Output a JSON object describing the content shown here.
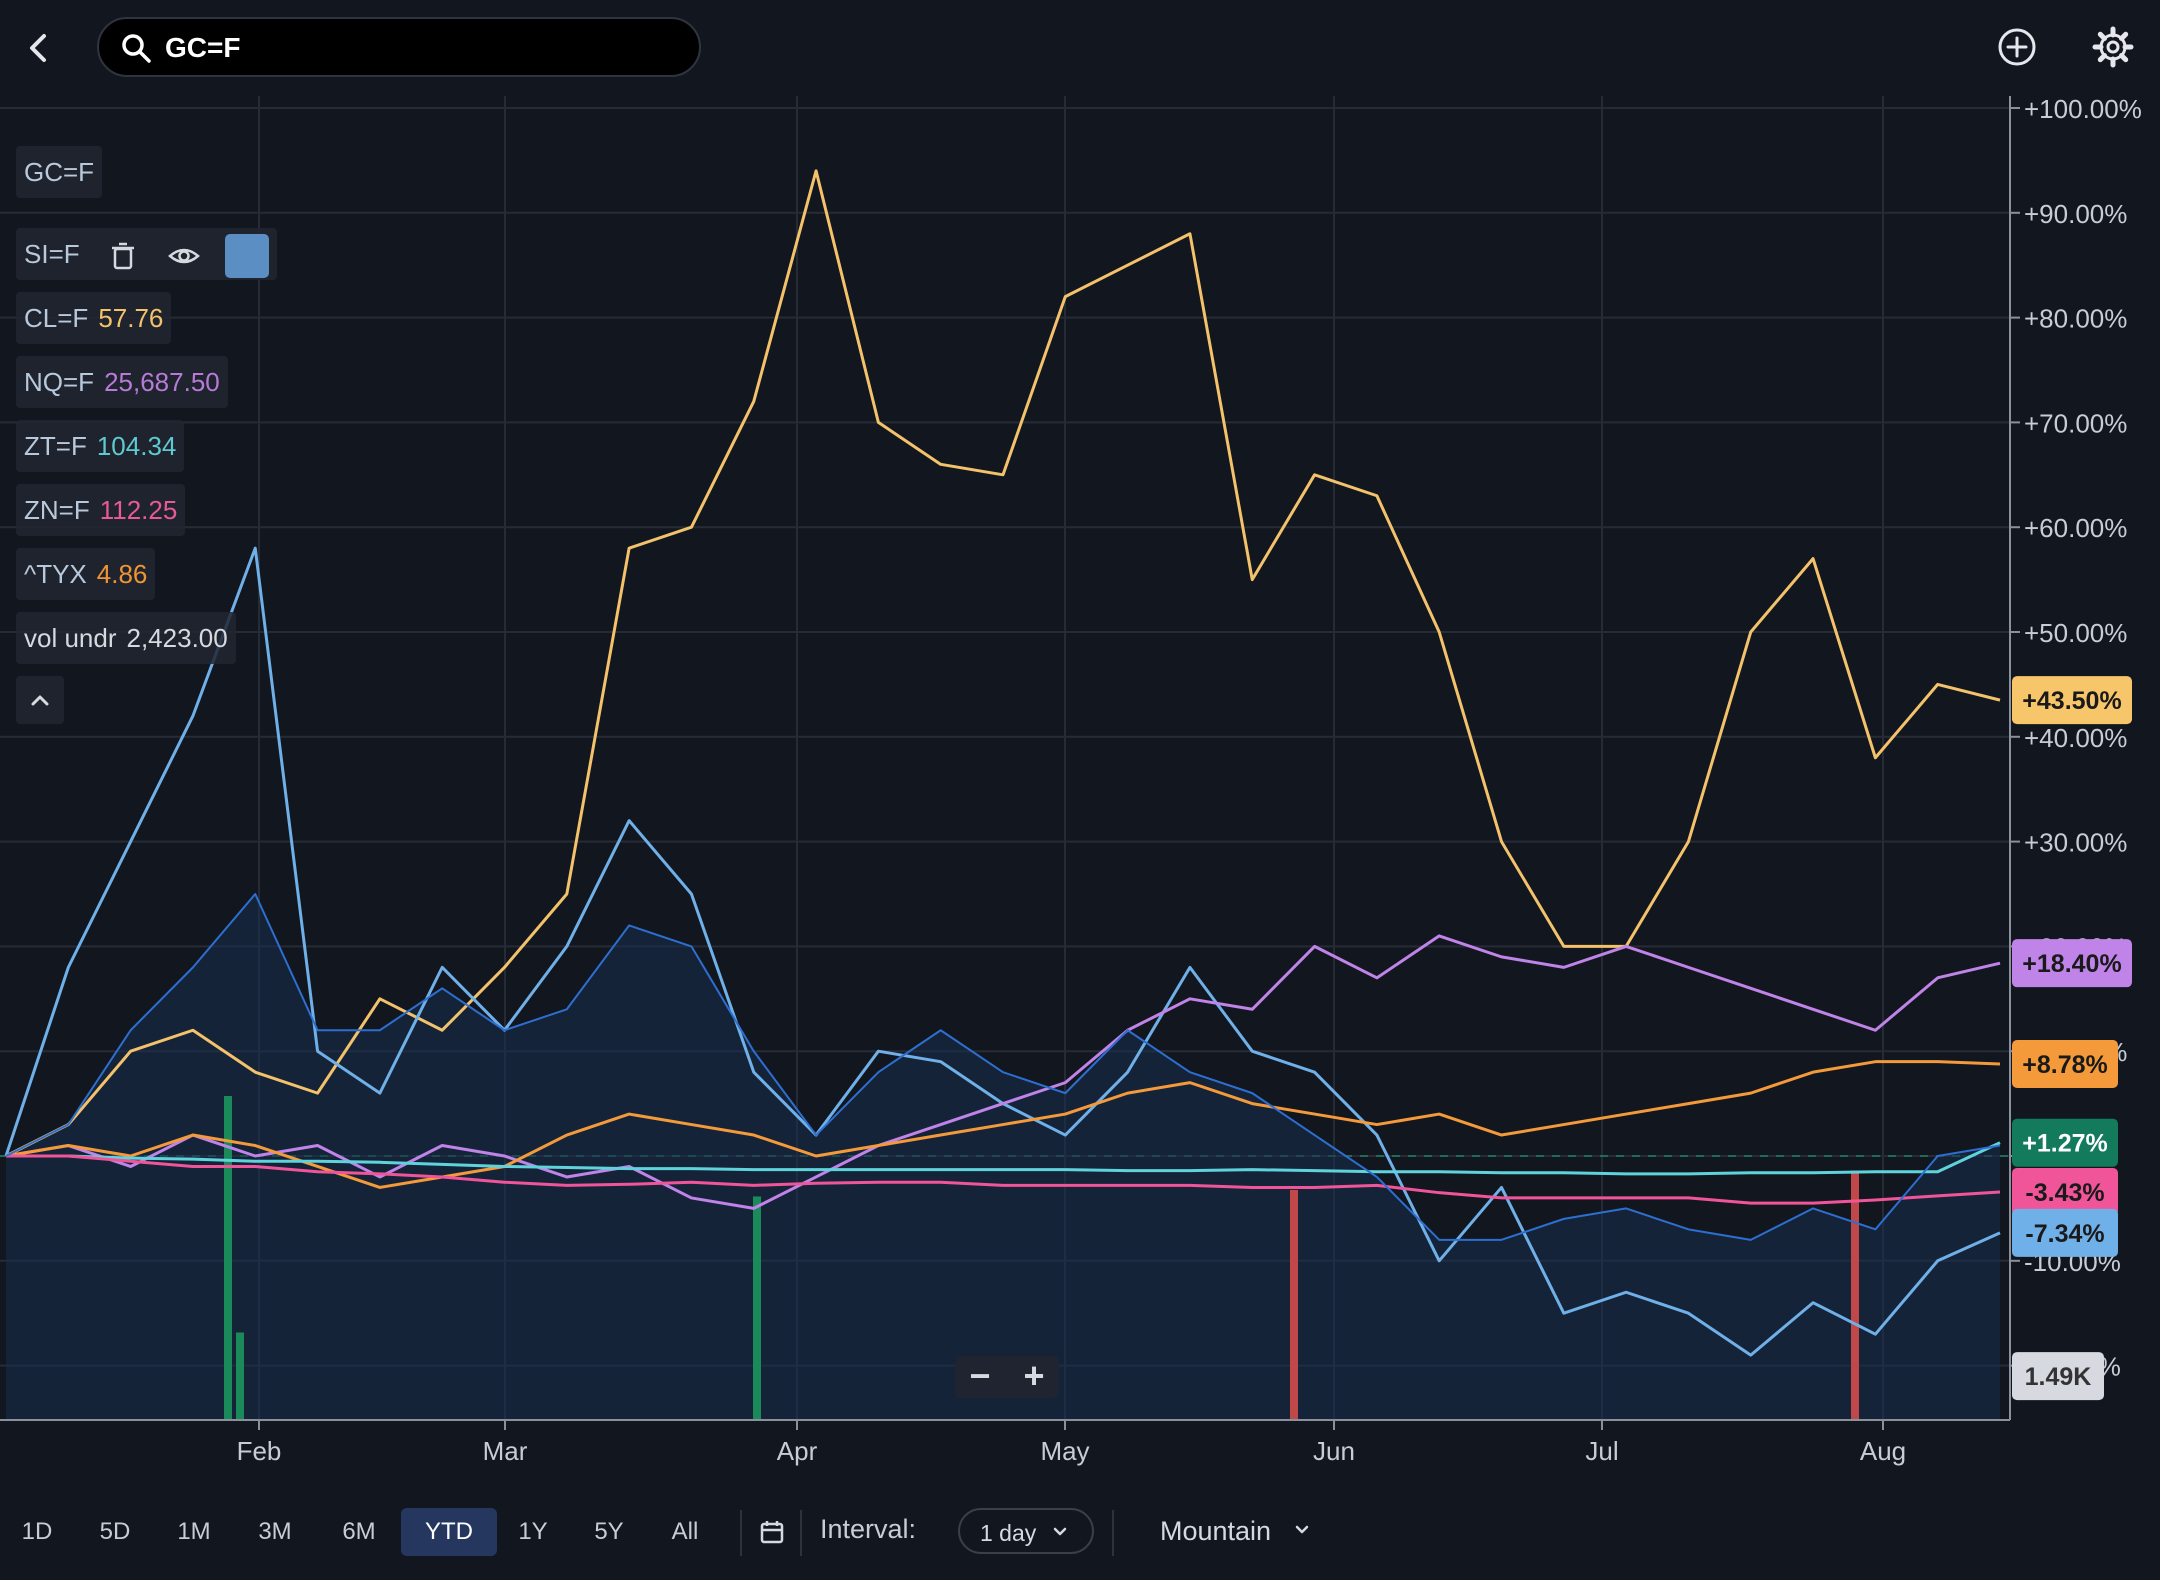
{
  "header": {
    "search_value": "GC=F",
    "icons": [
      "back-arrow-icon",
      "search-icon",
      "add-circle-icon",
      "gear-icon"
    ]
  },
  "legend": {
    "main_symbol": "GC=F",
    "items": [
      {
        "symbol": "SI=F",
        "value": "",
        "color": "#6fb0e8"
      },
      {
        "symbol": "CL=F",
        "value": "57.76",
        "color": "#f3c26b"
      },
      {
        "symbol": "NQ=F",
        "value": "25,687.50",
        "color": "#c083e8"
      },
      {
        "symbol": "ZT=F",
        "value": "104.34",
        "color": "#5fd3db"
      },
      {
        "symbol": "ZN=F",
        "value": "112.25",
        "color": "#f0559a"
      },
      {
        "symbol": "^TYX",
        "value": "4.86",
        "color": "#f49a3a"
      },
      {
        "symbol": "vol undr",
        "value": "2,423.00",
        "color": "#d6dae0"
      }
    ],
    "si_swatch_color": "#5b8fc4"
  },
  "zoom": {
    "minus": "−",
    "plus": "+"
  },
  "chart_data": {
    "type": "line",
    "x": [
      "Jan 2",
      "Jan 8",
      "Jan 15",
      "Jan 22",
      "Jan 29",
      "Feb 5",
      "Feb 12",
      "Feb 19",
      "Feb 26",
      "Mar 5",
      "Mar 12",
      "Mar 19",
      "Mar 26",
      "Apr 2",
      "Apr 9",
      "Apr 16",
      "Apr 23",
      "Apr 30",
      "May 7",
      "May 14",
      "May 21",
      "May 28",
      "Jun 4",
      "Jun 11",
      "Jun 18",
      "Jun 25",
      "Jul 2",
      "Jul 9",
      "Jul 16",
      "Jul 23",
      "Jul 30",
      "Aug 6",
      "Aug 13"
    ],
    "x_ticks": [
      "Feb",
      "Mar",
      "Apr",
      "May",
      "Jun",
      "Jul",
      "Aug"
    ],
    "y_ticks": [
      "+100.00%",
      "+90.00%",
      "+80.00%",
      "+70.00%",
      "+60.00%",
      "+50.00%",
      "+40.00%",
      "+30.00%",
      "+20.00%",
      "+10.00%",
      "0.00%",
      "-10.00%",
      "-20.00%"
    ],
    "ylim": [
      -25,
      102
    ],
    "grid": true,
    "series": [
      {
        "name": "CL=F",
        "color": "#f3c26b",
        "values": [
          0,
          3,
          10,
          12,
          8,
          6,
          15,
          12,
          18,
          25,
          58,
          60,
          72,
          94,
          70,
          66,
          65,
          82,
          85,
          88,
          55,
          65,
          63,
          50,
          30,
          20,
          20,
          30,
          50,
          57,
          38,
          45,
          43.5
        ]
      },
      {
        "name": "SI=F",
        "color": "#6fb0e8",
        "values": [
          0,
          18,
          30,
          42,
          58,
          10,
          6,
          18,
          12,
          20,
          32,
          25,
          8,
          2,
          10,
          9,
          5,
          2,
          8,
          18,
          10,
          8,
          2,
          -10,
          -3,
          -15,
          -13,
          -15,
          -19,
          -14,
          -17,
          -10,
          -7.34
        ]
      },
      {
        "name": "NQ=F",
        "color": "#c083e8",
        "values": [
          0,
          1,
          -1,
          2,
          0,
          1,
          -2,
          1,
          0,
          -2,
          -1,
          -4,
          -5,
          -2,
          1,
          3,
          5,
          7,
          12,
          15,
          14,
          20,
          17,
          21,
          19,
          18,
          20,
          18,
          16,
          14,
          12,
          17,
          18.4
        ]
      },
      {
        "name": "^TYX",
        "color": "#f49a3a",
        "values": [
          0,
          1,
          0,
          2,
          1,
          -1,
          -3,
          -2,
          -1,
          2,
          4,
          3,
          2,
          0,
          1,
          2,
          3,
          4,
          6,
          7,
          5,
          4,
          3,
          4,
          2,
          3,
          4,
          5,
          6,
          8,
          9,
          9,
          8.78
        ]
      },
      {
        "name": "ZT=F",
        "color": "#5fd3db",
        "values": [
          0,
          0,
          -0.2,
          -0.3,
          -0.5,
          -0.5,
          -0.6,
          -0.8,
          -1,
          -1.1,
          -1.2,
          -1.2,
          -1.3,
          -1.3,
          -1.3,
          -1.3,
          -1.3,
          -1.3,
          -1.4,
          -1.4,
          -1.3,
          -1.4,
          -1.5,
          -1.5,
          -1.6,
          -1.6,
          -1.7,
          -1.7,
          -1.6,
          -1.6,
          -1.5,
          -1.5,
          1.27
        ]
      },
      {
        "name": "ZN=F",
        "color": "#f0559a",
        "values": [
          0,
          0,
          -0.5,
          -1,
          -1,
          -1.5,
          -1.7,
          -2,
          -2.5,
          -2.8,
          -2.7,
          -2.5,
          -2.8,
          -2.6,
          -2.5,
          -2.5,
          -2.8,
          -2.8,
          -2.8,
          -2.8,
          -3,
          -3,
          -2.8,
          -3.5,
          -4,
          -4,
          -4,
          -4,
          -4.5,
          -4.5,
          -4.2,
          -3.8,
          -3.43
        ]
      },
      {
        "name": "vol undr",
        "color": "#2d6fd0",
        "values": [
          0,
          3,
          12,
          18,
          25,
          12,
          12,
          16,
          12,
          14,
          22,
          20,
          10,
          2,
          8,
          12,
          8,
          6,
          12,
          8,
          6,
          2,
          -2,
          -8,
          -8,
          -6,
          -5,
          -7,
          -8,
          -5,
          -7,
          0,
          1
        ]
      }
    ],
    "badges": [
      {
        "label": "+43.50%",
        "bg": "#f7c66b",
        "fg": "#1a1a1a",
        "value": 43.5
      },
      {
        "label": "+18.40%",
        "bg": "#c083e8",
        "fg": "#1a1a1a",
        "value": 18.4
      },
      {
        "label": "+8.78%",
        "bg": "#f49a3a",
        "fg": "#1a1a1a",
        "value": 8.78
      },
      {
        "label": "+1.27%",
        "bg": "#137a5c",
        "fg": "#ffffff",
        "value": 1.27
      },
      {
        "label": "-3.43%",
        "bg": "#f0559a",
        "fg": "#1a1a1a",
        "value": -3.43
      },
      {
        "label": "-7.34%",
        "bg": "#6fb0e8",
        "fg": "#1a1a1a",
        "value": -7.34
      },
      {
        "label": "1.49K",
        "bg": "#d6dae0",
        "fg": "#333333",
        "value": -21
      }
    ],
    "volume": [
      {
        "x": "Jan 29",
        "value": 100,
        "color": "#1b8a5a"
      },
      {
        "x": "Jan 30",
        "value": 27,
        "color": "#1b8a5a"
      },
      {
        "x": "Mar 27",
        "value": 69,
        "color": "#1b8a5a"
      },
      {
        "x": "May 28",
        "value": 71,
        "color": "#c04848"
      },
      {
        "x": "Jul 30",
        "value": 77,
        "color": "#c04848"
      }
    ]
  },
  "bottom_bar": {
    "ranges": [
      "1D",
      "5D",
      "1M",
      "3M",
      "6M",
      "YTD",
      "1Y",
      "5Y",
      "All"
    ],
    "active_range": "YTD",
    "interval_label": "Interval:",
    "interval_value": "1 day",
    "chart_type": "Mountain"
  }
}
